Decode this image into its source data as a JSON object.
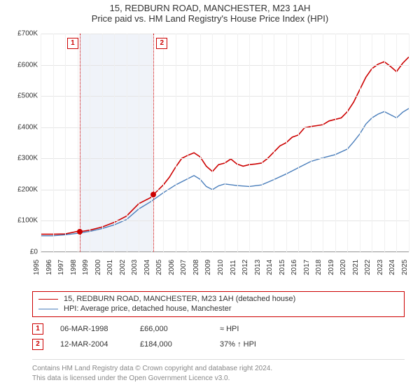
{
  "title": {
    "line1": "15, REDBURN ROAD, MANCHESTER, M23 1AH",
    "line2": "Price paid vs. HM Land Registry's House Price Index (HPI)"
  },
  "chart": {
    "type": "line",
    "background_color": "#ffffff",
    "grid_color": "#e5e5e5",
    "axis_color": "#aaaaaa",
    "tick_fontsize": 10,
    "ylabel_prefix": "£",
    "ylim": [
      0,
      700000
    ],
    "ytick_step": 100000,
    "yticks_fmt": [
      "£0",
      "£100K",
      "£200K",
      "£300K",
      "£400K",
      "£500K",
      "£600K",
      "£700K"
    ],
    "xlim": [
      1995,
      2025
    ],
    "xtick_step": 1,
    "shaded_bands": [
      {
        "from": 1998.19,
        "to": 1998.5,
        "color": "#e9eef7"
      },
      {
        "from": 1998.5,
        "to": 2004.2,
        "color": "#e9eef7"
      }
    ],
    "pins": [
      {
        "id": "1",
        "x": 1998.19,
        "dot_y": 66000,
        "box_xoffset": -18
      },
      {
        "id": "2",
        "x": 2004.2,
        "dot_y": 184000,
        "box_xoffset": 4
      }
    ],
    "pin_box_color": "#cc0000",
    "series": [
      {
        "name": "price-paid",
        "label": "15, REDBURN ROAD, MANCHESTER, M23 1AH (detached house)",
        "color": "#cc0000",
        "line_width": 1.6,
        "points": [
          [
            1995,
            57000
          ],
          [
            1996,
            57000
          ],
          [
            1997,
            58000
          ],
          [
            1998,
            66000
          ],
          [
            1998.5,
            67000
          ],
          [
            1999,
            70000
          ],
          [
            2000,
            80000
          ],
          [
            2001,
            95000
          ],
          [
            2002,
            115000
          ],
          [
            2003,
            155000
          ],
          [
            2004,
            175000
          ],
          [
            2004.2,
            184000
          ],
          [
            2005,
            215000
          ],
          [
            2005.5,
            240000
          ],
          [
            2006,
            272000
          ],
          [
            2006.5,
            300000
          ],
          [
            2007,
            310000
          ],
          [
            2007.5,
            318000
          ],
          [
            2008,
            305000
          ],
          [
            2008.5,
            275000
          ],
          [
            2009,
            258000
          ],
          [
            2009.5,
            280000
          ],
          [
            2010,
            285000
          ],
          [
            2010.5,
            298000
          ],
          [
            2011,
            282000
          ],
          [
            2011.5,
            275000
          ],
          [
            2012,
            280000
          ],
          [
            2012.5,
            282000
          ],
          [
            2013,
            285000
          ],
          [
            2013.5,
            300000
          ],
          [
            2014,
            320000
          ],
          [
            2014.5,
            340000
          ],
          [
            2015,
            350000
          ],
          [
            2015.5,
            368000
          ],
          [
            2016,
            375000
          ],
          [
            2016.5,
            398000
          ],
          [
            2017,
            402000
          ],
          [
            2017.5,
            405000
          ],
          [
            2018,
            408000
          ],
          [
            2018.5,
            420000
          ],
          [
            2019,
            425000
          ],
          [
            2019.5,
            430000
          ],
          [
            2020,
            450000
          ],
          [
            2020.5,
            480000
          ],
          [
            2021,
            520000
          ],
          [
            2021.5,
            560000
          ],
          [
            2022,
            588000
          ],
          [
            2022.5,
            602000
          ],
          [
            2023,
            610000
          ],
          [
            2023.5,
            595000
          ],
          [
            2024,
            578000
          ],
          [
            2024.5,
            605000
          ],
          [
            2025,
            625000
          ]
        ]
      },
      {
        "name": "hpi",
        "label": "HPI: Average price, detached house, Manchester",
        "color": "#4a7ebb",
        "line_width": 1.4,
        "points": [
          [
            1995,
            52000
          ],
          [
            1996,
            52000
          ],
          [
            1997,
            55000
          ],
          [
            1998,
            60000
          ],
          [
            1999,
            66000
          ],
          [
            2000,
            75000
          ],
          [
            2001,
            87000
          ],
          [
            2002,
            104000
          ],
          [
            2003,
            138000
          ],
          [
            2004,
            162000
          ],
          [
            2005,
            190000
          ],
          [
            2006,
            215000
          ],
          [
            2007,
            235000
          ],
          [
            2007.5,
            245000
          ],
          [
            2008,
            233000
          ],
          [
            2008.5,
            210000
          ],
          [
            2009,
            200000
          ],
          [
            2009.5,
            212000
          ],
          [
            2010,
            218000
          ],
          [
            2011,
            213000
          ],
          [
            2012,
            210000
          ],
          [
            2013,
            215000
          ],
          [
            2014,
            232000
          ],
          [
            2015,
            250000
          ],
          [
            2016,
            270000
          ],
          [
            2017,
            290000
          ],
          [
            2018,
            302000
          ],
          [
            2019,
            312000
          ],
          [
            2020,
            330000
          ],
          [
            2020.5,
            353000
          ],
          [
            2021,
            378000
          ],
          [
            2021.5,
            410000
          ],
          [
            2022,
            430000
          ],
          [
            2022.5,
            442000
          ],
          [
            2023,
            450000
          ],
          [
            2023.5,
            440000
          ],
          [
            2024,
            430000
          ],
          [
            2024.5,
            448000
          ],
          [
            2025,
            460000
          ]
        ]
      }
    ]
  },
  "legend": {
    "border_color": "#cc0000",
    "items": [
      {
        "series": "price-paid"
      },
      {
        "series": "hpi"
      }
    ]
  },
  "pin_table": {
    "rows": [
      {
        "id": "1",
        "date": "06-MAR-1998",
        "price": "£66,000",
        "delta": "≈ HPI"
      },
      {
        "id": "2",
        "date": "12-MAR-2004",
        "price": "£184,000",
        "delta": "37% ↑ HPI"
      }
    ]
  },
  "attribution": {
    "line1": "Contains HM Land Registry data © Crown copyright and database right 2024.",
    "line2": "This data is licensed under the Open Government Licence v3.0."
  }
}
